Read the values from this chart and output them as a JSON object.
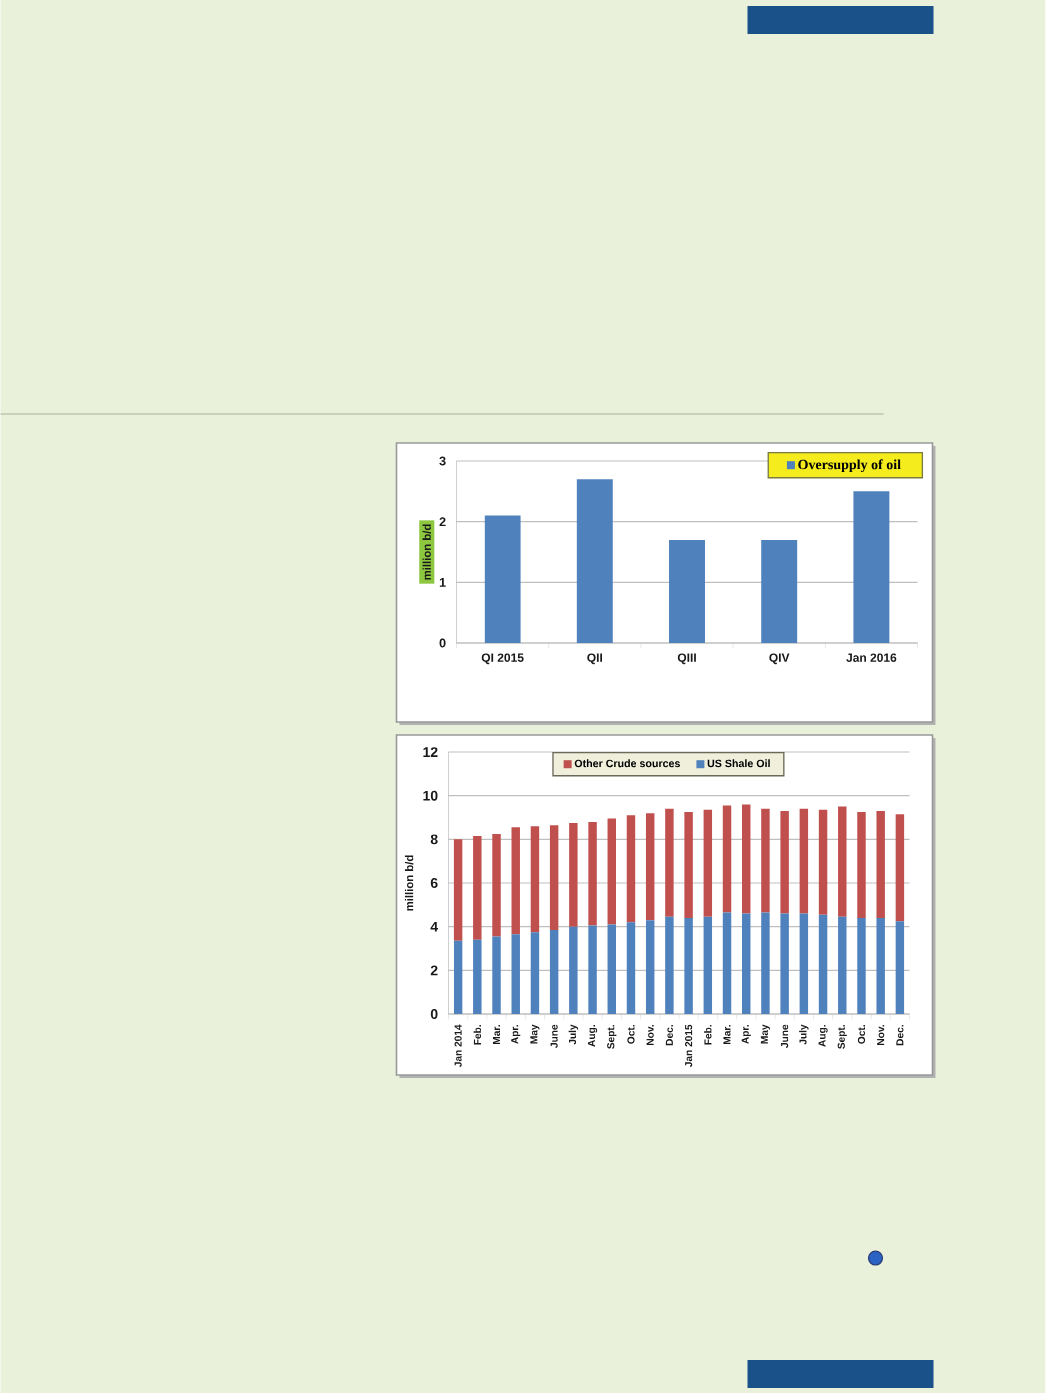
{
  "chart_data": [
    {
      "type": "bar",
      "categories": [
        "QI 2015",
        "QII",
        "QIII",
        "QIV",
        "Jan 2016"
      ],
      "series": [
        {
          "name": "Oversupply of oil",
          "color": "#4f81bd",
          "values": [
            2.1,
            2.7,
            1.7,
            1.7,
            2.5
          ]
        }
      ],
      "ylabel": "million b/d",
      "ylim": [
        0,
        3
      ],
      "yticks": [
        0,
        1,
        2,
        3
      ],
      "grid": "y",
      "legend": "top right"
    },
    {
      "type": "bar",
      "stacked": true,
      "categories": [
        "Jan 2014",
        "Feb.",
        "Mar.",
        "Apr.",
        "May",
        "June",
        "July",
        "Aug.",
        "Sept.",
        "Oct.",
        "Nov.",
        "Dec.",
        "Jan 2015",
        "Feb.",
        "Mar.",
        "Apr.",
        "May",
        "June",
        "July",
        "Aug.",
        "Sept.",
        "Oct.",
        "Nov.",
        "Dec."
      ],
      "series": [
        {
          "name": "US Shale Oil",
          "color": "#4f81bd",
          "values": [
            3.35,
            3.4,
            3.55,
            3.65,
            3.75,
            3.85,
            4.0,
            4.05,
            4.1,
            4.2,
            4.3,
            4.45,
            4.4,
            4.45,
            4.65,
            4.6,
            4.65,
            4.6,
            4.6,
            4.55,
            4.45,
            4.4,
            4.4,
            4.25
          ]
        },
        {
          "name": "Other Crude sources",
          "color": "#c0504d",
          "values": [
            4.65,
            4.75,
            4.7,
            4.9,
            4.85,
            4.8,
            4.75,
            4.75,
            4.85,
            4.9,
            4.9,
            4.95,
            4.85,
            4.9,
            4.9,
            5.0,
            4.75,
            4.7,
            4.8,
            4.8,
            5.05,
            4.85,
            4.9,
            4.9
          ]
        }
      ],
      "ylabel": "million b/d",
      "ylim": [
        0,
        12
      ],
      "yticks": [
        0,
        2,
        4,
        6,
        8,
        10,
        12
      ],
      "grid": "y",
      "legend": "top"
    }
  ]
}
